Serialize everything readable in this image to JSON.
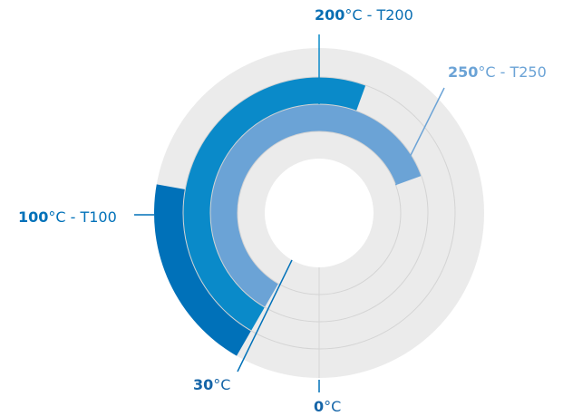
{
  "chart_data": {
    "type": "radial-bar",
    "title": "",
    "scale_max": 360,
    "unit": "°C",
    "series": [
      {
        "name": "T100",
        "start": 30,
        "end": 100,
        "color": "#0071b9"
      },
      {
        "name": "T200",
        "start": 30,
        "end": 200,
        "color": "#0a8ac9"
      },
      {
        "name": "T250",
        "start": 30,
        "end": 250,
        "color": "#6ba3d6"
      }
    ],
    "labels": [
      {
        "value": "200",
        "unit": "°C",
        "suffix": "- T200",
        "color": "#0a6fb3"
      },
      {
        "value": "250",
        "unit": "°C",
        "suffix": "- T250",
        "color": "#6ba3d6"
      },
      {
        "value": "100",
        "unit": "°C",
        "suffix": "- T100",
        "color": "#0071b9"
      },
      {
        "value": "30",
        "unit": "°C",
        "suffix": "",
        "color": "#1565a8"
      },
      {
        "value": "0",
        "unit": "°C",
        "suffix": "",
        "color": "#1565a8"
      }
    ],
    "background_color": "#ebebeb",
    "grid": true
  }
}
